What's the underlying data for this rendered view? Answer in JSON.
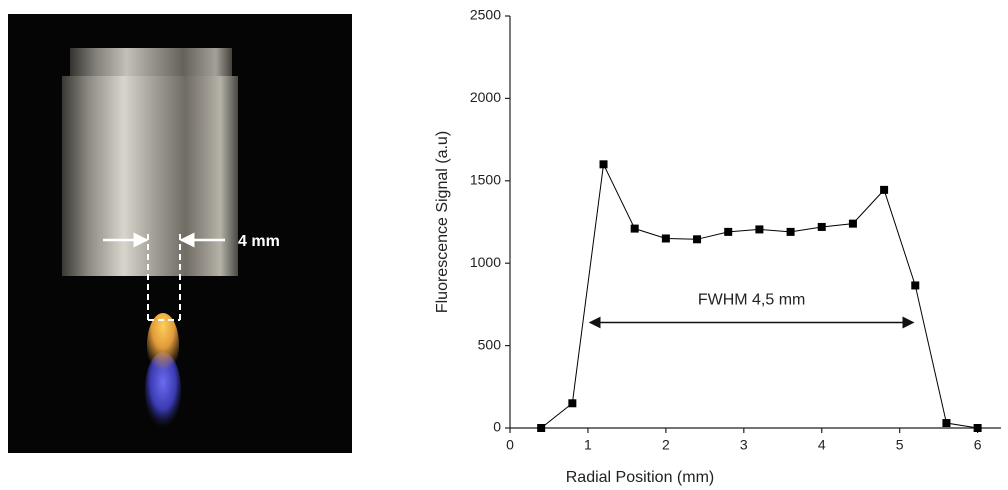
{
  "image_annotation": "4 mm",
  "chart_data": {
    "type": "line",
    "x_label": "Radial Position (mm)",
    "y_label": "Fluorescence Signal (a.u)",
    "x": [
      0.4,
      0.8,
      1.2,
      1.6,
      2.0,
      2.4,
      2.8,
      3.2,
      3.6,
      4.0,
      4.4,
      4.8,
      5.2,
      5.6,
      6.0
    ],
    "series": [
      {
        "color": "#000000",
        "values": [
          0,
          150,
          1600,
          1210,
          1150,
          1145,
          1190,
          1205,
          1190,
          1220,
          1240,
          1445,
          865,
          30,
          0
        ]
      }
    ],
    "xlim": [
      0,
      6.3
    ],
    "xticks": [
      0,
      1,
      2,
      3,
      4,
      5,
      6
    ],
    "ylim": [
      0,
      2500
    ],
    "yticks": [
      0,
      500,
      1000,
      1500,
      2000,
      2500
    ],
    "annotations": [
      {
        "text": "FWHM 4,5 mm",
        "x": [
          1,
          5.2
        ],
        "y": 640
      }
    ]
  }
}
